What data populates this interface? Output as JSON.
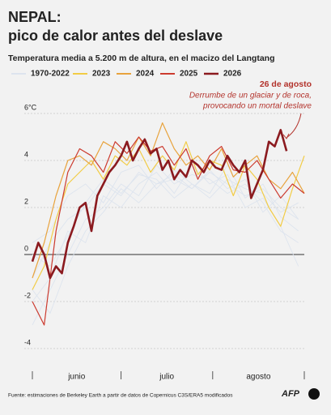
{
  "chart_data": {
    "type": "line",
    "title": "NEPAL:",
    "subtitle_line": "pico de calor antes del deslave",
    "subtitle": "Temperatura media a 5.200 m de altura, en el macizo del Langtang",
    "ylim": [
      -4.5,
      6.3
    ],
    "yticks": [
      -4,
      -2,
      0,
      2,
      4,
      {
        "value": 6,
        "label": "6°C"
      }
    ],
    "xlim": [
      0,
      92
    ],
    "xticks": [
      0,
      30,
      61,
      92
    ],
    "month_labels": [
      {
        "value": 15,
        "label": "junio"
      },
      {
        "value": 45.5,
        "label": "julio"
      },
      {
        "value": 76.5,
        "label": "agosto"
      }
    ],
    "grid": true,
    "series": [
      {
        "name": "1970-2022",
        "color": "#dde4ee",
        "x": [
          0,
          6,
          12,
          18,
          24,
          30,
          36,
          42,
          48,
          54,
          60,
          66,
          72,
          78,
          84,
          90
        ],
        "lines": [
          [
            -1,
            0.5,
            1.5,
            2,
            3,
            2.5,
            3.5,
            3,
            3.2,
            2.8,
            3.5,
            3,
            2.5,
            2.8,
            2,
            1.5
          ],
          [
            -3,
            -1.5,
            0,
            1.5,
            2,
            3,
            2.5,
            3.8,
            3,
            3.4,
            3.2,
            2.6,
            3,
            2.2,
            1,
            0.5
          ],
          [
            0.5,
            1,
            2.5,
            3,
            2.2,
            3.5,
            3.8,
            2.8,
            3.6,
            3,
            2.4,
            3.2,
            2.8,
            2.6,
            1.8,
            2.2
          ],
          [
            -2,
            -1,
            1,
            0.5,
            2.5,
            2,
            3,
            3.5,
            2.6,
            3.8,
            3,
            3.4,
            2,
            2.4,
            1.2,
            -0.5
          ],
          [
            -1.5,
            -2.5,
            -0.5,
            1,
            1.8,
            2.8,
            2.2,
            3,
            3.4,
            2.8,
            3.6,
            2.8,
            3.2,
            1.8,
            2.5,
            1.5
          ],
          [
            0,
            -0.5,
            0.8,
            2.2,
            3.2,
            2.6,
            3.4,
            3.2,
            2.4,
            3,
            2.6,
            3.8,
            2.4,
            3,
            1.6,
            1
          ]
        ]
      },
      {
        "name": "2023",
        "color": "#f2cc45",
        "width": 1.2,
        "x": [
          0,
          4,
          8,
          12,
          16,
          20,
          24,
          28,
          32,
          36,
          40,
          44,
          48,
          52,
          56,
          60,
          64,
          68,
          72,
          76,
          80,
          84,
          88,
          92
        ],
        "values": [
          -1.5,
          -0.5,
          1.5,
          3,
          3.5,
          4,
          3.2,
          4.2,
          3.8,
          4.5,
          3.5,
          4.2,
          3.6,
          4.8,
          3.4,
          4,
          3.8,
          2.5,
          3.8,
          3.2,
          2,
          1.2,
          2.8,
          4.2
        ]
      },
      {
        "name": "2024",
        "color": "#e8a33d",
        "width": 1.2,
        "x": [
          0,
          4,
          8,
          12,
          16,
          20,
          24,
          28,
          32,
          36,
          40,
          44,
          48,
          52,
          56,
          60,
          64,
          68,
          72,
          76,
          80,
          84,
          88,
          92
        ],
        "values": [
          -1,
          0.5,
          2.5,
          4,
          4.2,
          3.8,
          4.8,
          4.5,
          4,
          5,
          4.2,
          5.6,
          4.5,
          3.8,
          4.2,
          3.6,
          4.5,
          3.3,
          3.8,
          4.2,
          3.2,
          2.8,
          3.5,
          2.6
        ]
      },
      {
        "name": "2025",
        "color": "#cc3b2f",
        "width": 1.2,
        "x": [
          0,
          4,
          8,
          12,
          16,
          20,
          24,
          28,
          32,
          36,
          40,
          44,
          48,
          52,
          56,
          60,
          64,
          68,
          72,
          76,
          80,
          84,
          88,
          92
        ],
        "values": [
          -2,
          -3,
          1,
          3.5,
          4.5,
          4.2,
          3.5,
          4.8,
          4.3,
          5,
          4.4,
          4.6,
          3.8,
          4.5,
          3.2,
          4.2,
          4.6,
          3.6,
          3.5,
          4,
          3.2,
          2.4,
          3,
          2.6
        ]
      },
      {
        "name": "2026",
        "color": "#8b1a1f",
        "width": 2.6,
        "x": [
          0,
          2,
          4,
          6,
          8,
          10,
          12,
          14,
          16,
          18,
          20,
          22,
          24,
          26,
          28,
          30,
          32,
          34,
          36,
          38,
          40,
          42,
          44,
          46,
          48,
          50,
          52,
          54,
          56,
          58,
          60,
          62,
          64,
          66,
          68,
          70,
          72,
          74,
          76,
          78,
          80,
          82,
          84,
          86
        ],
        "values": [
          -0.3,
          0.5,
          0,
          -1,
          -0.5,
          -0.8,
          0.5,
          1.2,
          2,
          2.2,
          1,
          2.5,
          3,
          3.5,
          3.8,
          4.2,
          4.8,
          4,
          4.5,
          4.9,
          4.3,
          4.5,
          3.6,
          4,
          3.2,
          3.6,
          3.3,
          4,
          3.8,
          3.5,
          4,
          3.7,
          3.6,
          4.2,
          3.8,
          3.5,
          4,
          2.4,
          3,
          3.6,
          4.8,
          4.6,
          5.3,
          4.4
        ]
      }
    ],
    "annotation": {
      "title": "26 de agosto",
      "lines": [
        "Derrumbe de un glaciar y de roca,",
        "provocando un mortal deslave"
      ]
    },
    "source": "Fuente: estimaciones de Berkeley Earth a partir de datos de Copernicus C3S/ERA5 modificados",
    "logo": "AFP"
  }
}
